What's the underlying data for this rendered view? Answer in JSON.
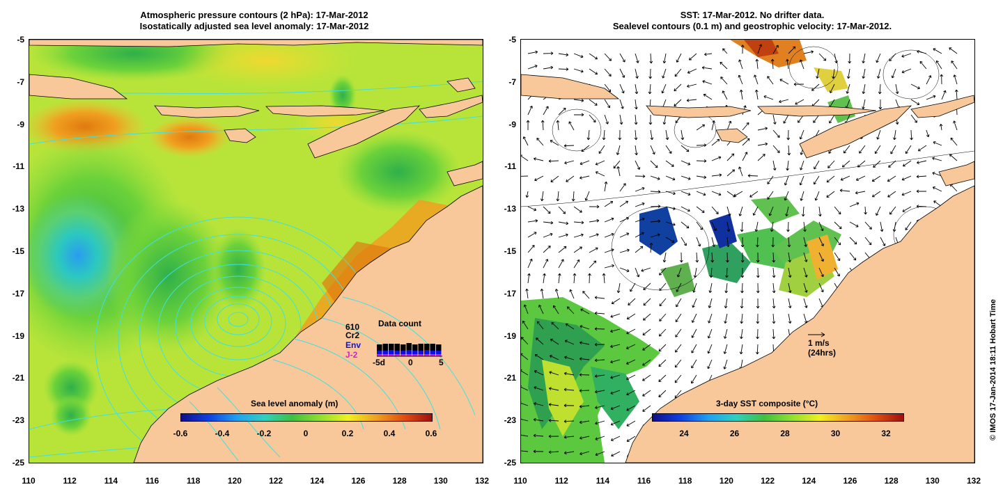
{
  "left_panel": {
    "title_line1": "Atmospheric pressure contours (2 hPa): 17-Mar-2012",
    "title_line2": "Isostatically adjusted sea level anomaly: 17-Mar-2012",
    "colorbar_title": "Sea level anomaly (m)",
    "colorbar_ticks": [
      "-0.6",
      "-0.4",
      "-0.2",
      "0",
      "0.2",
      "0.4",
      "0.6"
    ],
    "data_count": {
      "title": "Data count",
      "satellites": [
        "610",
        "Cr2",
        "Env",
        "J-2"
      ],
      "satellite_colors": [
        "#000000",
        "#000000",
        "#1010e0",
        "#d020d0"
      ],
      "axis_ticks": [
        "-5d",
        "0",
        "5"
      ]
    }
  },
  "right_panel": {
    "title_line1": "SST: 17-Mar-2012. No drifter data.",
    "title_line2": "Sealevel contours (0.1 m) and geostrophic velocity: 17-Mar-2012.",
    "colorbar_title": "3-day SST composite (°C)",
    "colorbar_ticks": [
      "24",
      "26",
      "28",
      "30",
      "32"
    ],
    "scale_label": "1 m/s",
    "scale_sub": "(24hrs)"
  },
  "axes": {
    "y_ticks": [
      "-5",
      "-7",
      "-9",
      "-11",
      "-13",
      "-15",
      "-17",
      "-19",
      "-21",
      "-23",
      "-25"
    ],
    "x_ticks": [
      "110",
      "112",
      "114",
      "116",
      "118",
      "120",
      "122",
      "124",
      "126",
      "128",
      "130",
      "132"
    ]
  },
  "credit": "© IMOS 17-Jan-2014 18:11 Hobart Time",
  "colors": {
    "land": "#f8c89a",
    "sla_base": "#c8e83a",
    "sst_mask": "#ffffff"
  }
}
